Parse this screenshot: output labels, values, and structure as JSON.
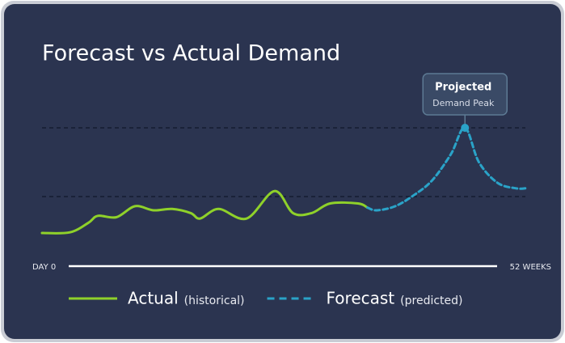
{
  "chart_data": {
    "type": "line",
    "title": "Forecast vs Actual Demand",
    "x_start_label": "DAY 0",
    "x_end_label": "52 WEEKS",
    "xlim": [
      0,
      52
    ],
    "ylim": [
      0,
      100
    ],
    "series": [
      {
        "name": "Actual",
        "description": "(historical)",
        "color": "#8fd12a",
        "dashed": false,
        "x": [
          0,
          3,
          5,
          6,
          8,
          10,
          12,
          14,
          16,
          17,
          19,
          22,
          25,
          27,
          29,
          31,
          34,
          35
        ],
        "values": [
          23.5,
          24,
          31,
          36,
          35,
          43,
          40,
          41,
          38,
          34,
          41,
          34,
          54,
          38,
          38,
          45,
          45,
          42
        ]
      },
      {
        "name": "Forecast",
        "description": "(predicted)",
        "color": "#2aa3c8",
        "dashed": true,
        "x": [
          35,
          36,
          38,
          40,
          42,
          44,
          45.5,
          47,
          49,
          51,
          52
        ],
        "values": [
          42,
          40,
          43,
          51,
          62,
          81,
          100,
          75,
          60,
          56,
          56
        ]
      }
    ],
    "annotation": {
      "title": "Projected",
      "subtitle": "Demand Peak",
      "series": 1,
      "point": 6
    }
  }
}
